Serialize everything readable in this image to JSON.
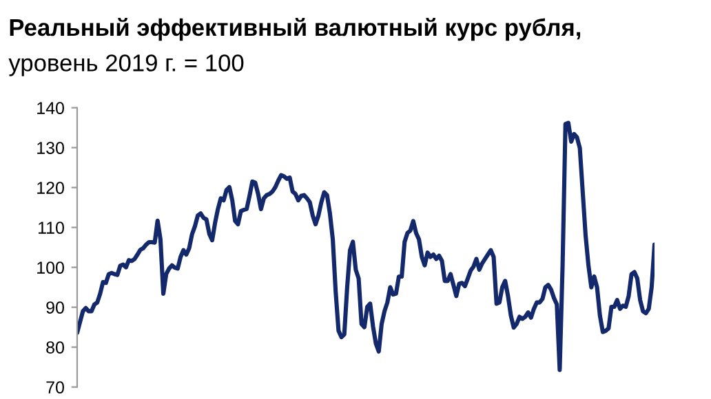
{
  "chart_data": {
    "type": "line",
    "title": "Реальный эффективный валютный курс рубля,",
    "subtitle": "уровень 2019 г. = 100",
    "categories": [
      null,
      null,
      null,
      null,
      null,
      null,
      null,
      null,
      null,
      null,
      null,
      null,
      null,
      null,
      null,
      null,
      null,
      null,
      null,
      null,
      null,
      null,
      null,
      null,
      null,
      null,
      null,
      null,
      null,
      null,
      null,
      null,
      null,
      null,
      null,
      null,
      null,
      null,
      null,
      null,
      null,
      null,
      null,
      null,
      null,
      null,
      null,
      null,
      null,
      null,
      null,
      null,
      null,
      null,
      null,
      null,
      null,
      null,
      null,
      null,
      null,
      null,
      null,
      null,
      null,
      null,
      null,
      null,
      null,
      null,
      null,
      null,
      null,
      null,
      null,
      null,
      null,
      null,
      null,
      null,
      null,
      null,
      null,
      null,
      null,
      null,
      null,
      null,
      null,
      null,
      null,
      null,
      null,
      null,
      null,
      null,
      null,
      null,
      null,
      null,
      null,
      null,
      null,
      null,
      null,
      null,
      null,
      null,
      null,
      null,
      null,
      null,
      null,
      null,
      null,
      null,
      null,
      null,
      null,
      null,
      null,
      null,
      null,
      null,
      null,
      null,
      null,
      null,
      null,
      null,
      null,
      null,
      null,
      null,
      null,
      null,
      null,
      null,
      null,
      null,
      null,
      null,
      null,
      null,
      null,
      null,
      null,
      null,
      null,
      null,
      null,
      null,
      null,
      null,
      null,
      null,
      null,
      null,
      null,
      null,
      null,
      null,
      null,
      null,
      null,
      null,
      null,
      null,
      null,
      null,
      null,
      null,
      null,
      null,
      null,
      null,
      null,
      null,
      null,
      null,
      null,
      null,
      null,
      null,
      null,
      null,
      null,
      null,
      null,
      null,
      null,
      null,
      null,
      null,
      null,
      null,
      null,
      null,
      null,
      null,
      null,
      null
    ],
    "series": [
      {
        "color": "#14296b",
        "values": [
          83.6,
          86.3,
          89,
          89.8,
          89,
          89,
          90.7,
          91.2,
          93.4,
          96.3,
          96.1,
          98.3,
          98.6,
          98.3,
          98.1,
          100.4,
          100.7,
          100,
          101.8,
          101.6,
          102.1,
          103.2,
          104.4,
          104.8,
          105.7,
          106.3,
          106.3,
          106.2,
          111.7,
          107,
          93.4,
          98.3,
          99.7,
          100.5,
          99.9,
          99.7,
          102.6,
          104.3,
          103.2,
          104.8,
          108.3,
          110.3,
          113,
          113.5,
          112.4,
          112,
          108.4,
          106.8,
          111.1,
          114.6,
          117.3,
          116.8,
          119.4,
          120.1,
          116.8,
          111.6,
          110.8,
          114.1,
          114.4,
          114.6,
          117.9,
          121.5,
          121.2,
          118.4,
          114.6,
          117.3,
          118.1,
          118.4,
          119,
          120.1,
          121.7,
          123.1,
          122.8,
          122.2,
          122.5,
          119,
          118.4,
          116.8,
          117.9,
          118.1,
          117.3,
          116.3,
          113,
          110.8,
          113,
          116.3,
          118.8,
          118.1,
          113.5,
          107,
          93.9,
          84.1,
          82.5,
          83.2,
          95,
          104.3,
          106.4,
          99.4,
          97.2,
          85.8,
          85,
          90.1,
          90.9,
          85.2,
          80.9,
          78.9,
          85.8,
          89,
          91.2,
          95,
          93.2,
          93.4,
          97.7,
          97.7,
          106.4,
          108.6,
          109.2,
          111.6,
          108.6,
          107,
          102.6,
          100.5,
          103.7,
          102.6,
          103.2,
          102.1,
          102.9,
          101.6,
          96.6,
          96.6,
          98.3,
          95.6,
          92.8,
          95.9,
          96.1,
          95.3,
          97.2,
          99.2,
          100.2,
          102.1,
          99.4,
          101,
          102.1,
          103.2,
          104.3,
          102.6,
          90.9,
          91.2,
          95,
          96.6,
          92.8,
          87.9,
          84.9,
          85.8,
          87.6,
          87.1,
          87.6,
          88.7,
          87.4,
          89.6,
          91.2,
          91.2,
          92.1,
          95,
          95.6,
          94.4,
          92.3,
          90.7,
          74.3,
          100.5,
          135.9,
          136.2,
          131.5,
          133.4,
          132.6,
          129.9,
          119,
          108.1,
          100.5,
          95,
          97.7,
          95,
          87.9,
          83.8,
          84.1,
          84.7,
          90.1,
          90.1,
          91.8,
          89.6,
          90.4,
          90.1,
          92.8,
          98.3,
          98.8,
          97.2,
          91.8,
          89,
          88.5,
          89.6,
          95,
          105.7
        ]
      }
    ],
    "ylim": [
      70,
      140
    ],
    "yticks": [
      70,
      80,
      90,
      100,
      110,
      120,
      130,
      140
    ],
    "tick_labels": "y",
    "grid": false
  }
}
